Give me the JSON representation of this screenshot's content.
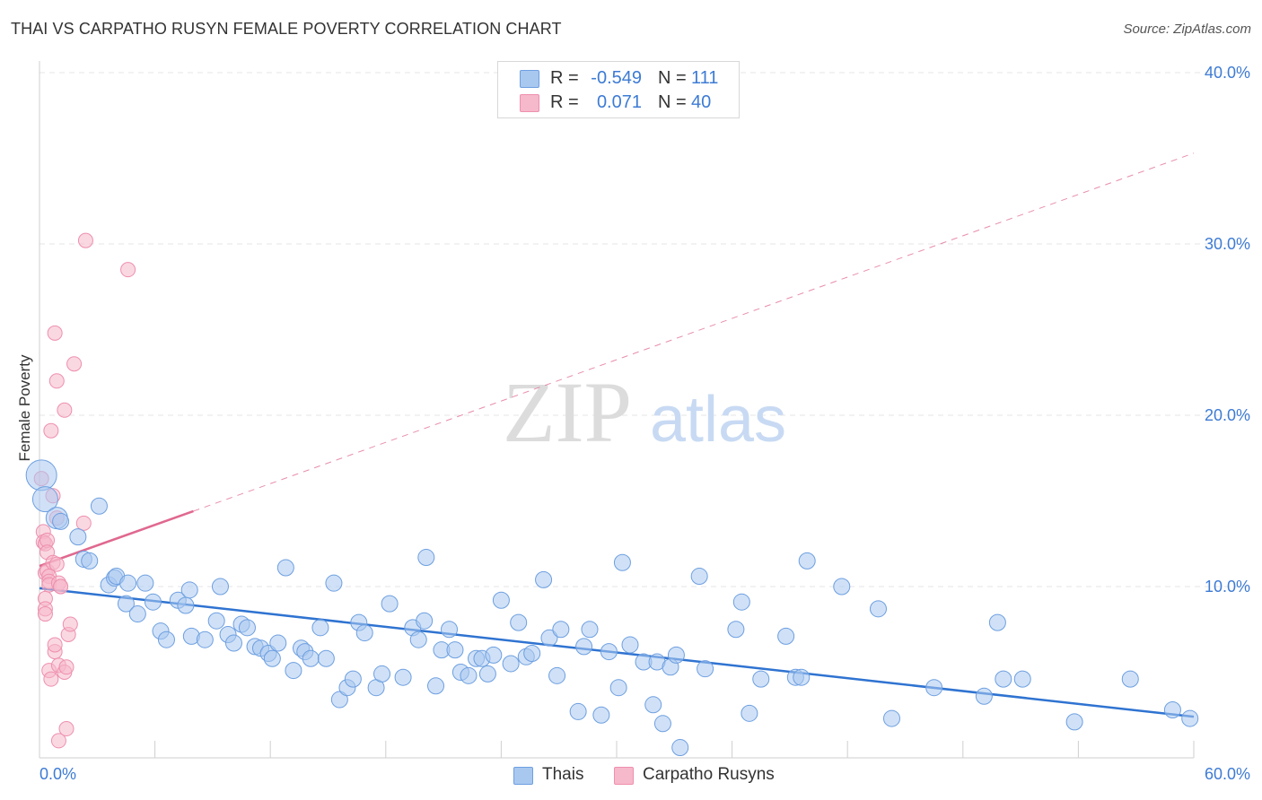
{
  "title": "THAI VS CARPATHO RUSYN FEMALE POVERTY CORRELATION CHART",
  "source": "Source: ZipAtlas.com",
  "watermark": {
    "zip": "ZIP",
    "atlas": "atlas"
  },
  "legend": {
    "r_label": "R =",
    "n_label": "N =",
    "rows": [
      {
        "r": "-0.549",
        "n": "111"
      },
      {
        "r": "0.071",
        "n": "40"
      }
    ]
  },
  "colors": {
    "thai_fill": "#a9c8f0",
    "thai_stroke": "#6d9fe0",
    "thai_line": "#2f73d1",
    "rusyn_fill": "#f6b8cb",
    "rusyn_stroke": "#ee8fae",
    "rusyn_line": "#e0688f",
    "tick_label": "#3d7bd4",
    "grid": "#e6e6e6"
  },
  "chart_data": {
    "type": "scatter",
    "title": "THAI VS CARPATHO RUSYN FEMALE POVERTY CORRELATION CHART",
    "xlabel": "",
    "ylabel": "Female Poverty",
    "xlim": [
      0,
      60
    ],
    "ylim": [
      0,
      42
    ],
    "x_tick_labels": [
      "0.0%",
      "60.0%"
    ],
    "y_ticks": [
      10,
      20,
      30,
      40
    ],
    "y_tick_labels": [
      "10.0%",
      "20.0%",
      "30.0%",
      "40.0%"
    ],
    "grid": true,
    "legend_position": "top-center",
    "series": [
      {
        "name": "Thais",
        "r": -0.549,
        "n": 111,
        "trend": {
          "x": [
            0,
            60
          ],
          "y": [
            9.9,
            2.4
          ],
          "style": "solid"
        },
        "points": [
          [
            0.1,
            16.5
          ],
          [
            0.3,
            15.1
          ],
          [
            0.9,
            14.0
          ],
          [
            1.1,
            13.8
          ],
          [
            2.0,
            12.9
          ],
          [
            3.1,
            14.7
          ],
          [
            2.3,
            11.6
          ],
          [
            2.6,
            11.5
          ],
          [
            3.6,
            10.1
          ],
          [
            3.9,
            10.5
          ],
          [
            4.0,
            10.6
          ],
          [
            4.6,
            10.2
          ],
          [
            5.5,
            10.2
          ],
          [
            4.5,
            9.0
          ],
          [
            5.1,
            8.4
          ],
          [
            5.9,
            9.1
          ],
          [
            6.3,
            7.4
          ],
          [
            6.6,
            6.9
          ],
          [
            7.2,
            9.2
          ],
          [
            7.6,
            8.9
          ],
          [
            7.8,
            9.8
          ],
          [
            7.9,
            7.1
          ],
          [
            8.6,
            6.9
          ],
          [
            9.2,
            8.0
          ],
          [
            9.4,
            10.0
          ],
          [
            9.8,
            7.2
          ],
          [
            10.1,
            6.7
          ],
          [
            10.5,
            7.8
          ],
          [
            10.8,
            7.6
          ],
          [
            11.2,
            6.5
          ],
          [
            11.5,
            6.4
          ],
          [
            11.9,
            6.1
          ],
          [
            12.1,
            5.8
          ],
          [
            12.4,
            6.7
          ],
          [
            12.8,
            11.1
          ],
          [
            13.2,
            5.1
          ],
          [
            13.6,
            6.4
          ],
          [
            13.8,
            6.2
          ],
          [
            14.1,
            5.8
          ],
          [
            14.6,
            7.6
          ],
          [
            14.9,
            5.8
          ],
          [
            15.3,
            10.2
          ],
          [
            15.6,
            3.4
          ],
          [
            16.0,
            4.1
          ],
          [
            16.3,
            4.6
          ],
          [
            16.6,
            7.9
          ],
          [
            16.9,
            7.3
          ],
          [
            17.5,
            4.1
          ],
          [
            17.8,
            4.9
          ],
          [
            18.2,
            9.0
          ],
          [
            18.9,
            4.7
          ],
          [
            19.4,
            7.6
          ],
          [
            19.7,
            6.9
          ],
          [
            20.0,
            8.0
          ],
          [
            20.1,
            11.7
          ],
          [
            20.6,
            4.2
          ],
          [
            20.9,
            6.3
          ],
          [
            21.3,
            7.5
          ],
          [
            21.6,
            6.3
          ],
          [
            21.9,
            5.0
          ],
          [
            22.3,
            4.8
          ],
          [
            22.7,
            5.8
          ],
          [
            23.0,
            5.8
          ],
          [
            23.3,
            4.9
          ],
          [
            23.6,
            6.0
          ],
          [
            24.0,
            9.2
          ],
          [
            24.5,
            5.5
          ],
          [
            24.9,
            7.9
          ],
          [
            25.3,
            5.9
          ],
          [
            25.6,
            6.1
          ],
          [
            26.2,
            10.4
          ],
          [
            26.5,
            7.0
          ],
          [
            26.9,
            4.8
          ],
          [
            27.1,
            7.5
          ],
          [
            28.0,
            2.7
          ],
          [
            28.3,
            6.5
          ],
          [
            28.6,
            7.5
          ],
          [
            29.2,
            2.5
          ],
          [
            29.6,
            6.2
          ],
          [
            30.1,
            4.1
          ],
          [
            30.3,
            11.4
          ],
          [
            30.7,
            6.6
          ],
          [
            31.4,
            5.6
          ],
          [
            31.9,
            3.1
          ],
          [
            32.1,
            5.6
          ],
          [
            32.4,
            2.0
          ],
          [
            32.8,
            5.3
          ],
          [
            33.1,
            6.0
          ],
          [
            33.3,
            0.6
          ],
          [
            34.3,
            10.6
          ],
          [
            34.6,
            5.2
          ],
          [
            36.2,
            7.5
          ],
          [
            36.5,
            9.1
          ],
          [
            36.9,
            2.6
          ],
          [
            37.5,
            4.6
          ],
          [
            38.8,
            7.1
          ],
          [
            39.3,
            4.7
          ],
          [
            39.6,
            4.7
          ],
          [
            39.9,
            11.5
          ],
          [
            41.7,
            10.0
          ],
          [
            43.6,
            8.7
          ],
          [
            44.3,
            2.3
          ],
          [
            46.5,
            4.1
          ],
          [
            49.1,
            3.6
          ],
          [
            49.8,
            7.9
          ],
          [
            50.1,
            4.6
          ],
          [
            51.1,
            4.6
          ],
          [
            53.8,
            2.1
          ],
          [
            56.7,
            4.6
          ],
          [
            59.8,
            2.3
          ],
          [
            58.9,
            2.8
          ]
        ]
      },
      {
        "name": "Carpatho Rusyns",
        "r": 0.071,
        "n": 40,
        "trend": {
          "x": [
            0,
            8
          ],
          "y": [
            11.2,
            14.4
          ],
          "style": "solid"
        },
        "trend_extended": {
          "x": [
            8,
            60
          ],
          "y": [
            14.4,
            35.3
          ],
          "style": "dashed"
        },
        "points": [
          [
            0.1,
            16.3
          ],
          [
            0.2,
            13.2
          ],
          [
            0.2,
            12.6
          ],
          [
            0.3,
            12.5
          ],
          [
            0.3,
            10.8
          ],
          [
            0.3,
            9.3
          ],
          [
            0.3,
            8.7
          ],
          [
            0.3,
            8.4
          ],
          [
            0.4,
            12.7
          ],
          [
            0.4,
            12.0
          ],
          [
            0.4,
            10.9
          ],
          [
            0.5,
            10.6
          ],
          [
            0.5,
            10.3
          ],
          [
            0.5,
            10.1
          ],
          [
            0.5,
            5.1
          ],
          [
            0.6,
            4.6
          ],
          [
            0.6,
            19.1
          ],
          [
            0.7,
            15.3
          ],
          [
            0.7,
            11.4
          ],
          [
            0.8,
            24.8
          ],
          [
            0.8,
            6.2
          ],
          [
            0.8,
            6.6
          ],
          [
            0.9,
            14.0
          ],
          [
            0.9,
            11.3
          ],
          [
            0.9,
            22.0
          ],
          [
            1.0,
            10.2
          ],
          [
            1.0,
            5.4
          ],
          [
            1.0,
            1.0
          ],
          [
            1.1,
            10.0
          ],
          [
            1.1,
            10.0
          ],
          [
            1.3,
            20.3
          ],
          [
            1.3,
            5.0
          ],
          [
            1.4,
            5.3
          ],
          [
            1.4,
            1.7
          ],
          [
            1.5,
            7.2
          ],
          [
            1.6,
            7.8
          ],
          [
            1.8,
            23.0
          ],
          [
            2.3,
            13.7
          ],
          [
            2.4,
            30.2
          ],
          [
            4.6,
            28.5
          ]
        ]
      }
    ]
  },
  "bottom_legend": [
    {
      "label": "Thais"
    },
    {
      "label": "Carpatho Rusyns"
    }
  ]
}
